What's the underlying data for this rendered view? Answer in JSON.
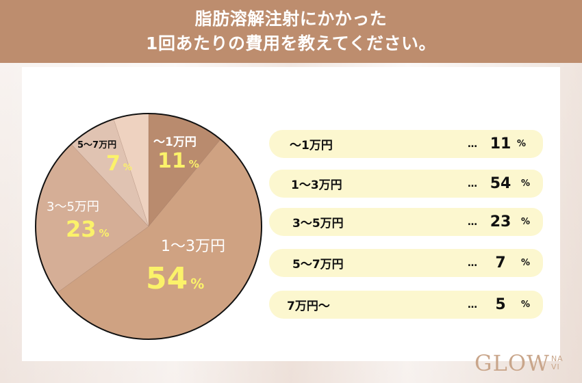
{
  "header": {
    "title_line1": "脂肪溶解注射にかかった",
    "title_line2": "1回あたりの費用を教えてください。"
  },
  "chart_data": {
    "type": "pie",
    "title": "脂肪溶解注射にかかった1回あたりの費用を教えてください。",
    "categories": [
      "〜1万円",
      "1〜3万円",
      "3〜5万円",
      "5〜7万円",
      "7万円〜"
    ],
    "values": [
      11,
      54,
      23,
      7,
      5
    ],
    "unit": "%",
    "colors": [
      "#b98b6e",
      "#cfa282",
      "#d5ae96",
      "#e0c3b2",
      "#eed2c0"
    ],
    "start_angle": "12 o'clock",
    "direction": "clockwise",
    "legend_position": "right"
  },
  "pie_labels": [
    {
      "cat": "〜1万円",
      "num": "11",
      "unit": "%",
      "cat_color": "#ffffff"
    },
    {
      "cat": "1〜3万円",
      "num": "54",
      "unit": "%",
      "cat_color": "#ffffff"
    },
    {
      "cat": "3〜5万円",
      "num": "23",
      "unit": "%",
      "cat_color": "#ffffff"
    },
    {
      "cat": "5〜7万円",
      "num": "7",
      "unit": "%",
      "cat_color": "#111111"
    }
  ],
  "legend": {
    "dots": "…",
    "rows": [
      {
        "label": "〜1万円",
        "value": "11",
        "unit": "%"
      },
      {
        "label": "1〜3万円",
        "value": "54",
        "unit": "%"
      },
      {
        "label": "3〜5万円",
        "value": "23",
        "unit": "%"
      },
      {
        "label": "5〜7万円",
        "value": "7",
        "unit": "%"
      },
      {
        "label": "7万円〜",
        "value": "5",
        "unit": "%"
      }
    ]
  },
  "logo": {
    "main": "GLOW",
    "sub_top": "NA",
    "sub_bottom": "VI"
  },
  "colors": {
    "header_bg": "#bd8d6e",
    "pill_bg": "#fcf7cf",
    "highlight_yellow": "#fbf26a",
    "logo": "#c9a68b"
  }
}
